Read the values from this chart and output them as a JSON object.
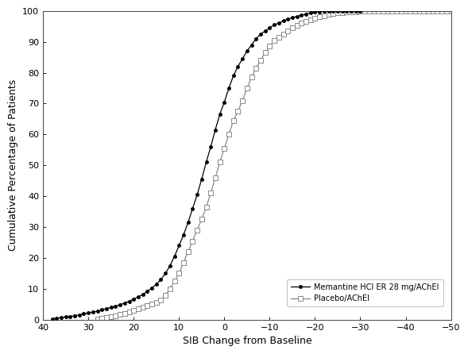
{
  "title": "",
  "xlabel": "SIB Change from Baseline",
  "ylabel": "Cumulative Percentage of Patients",
  "xlim": [
    40,
    -50
  ],
  "ylim": [
    0,
    100
  ],
  "xticks": [
    40,
    30,
    20,
    10,
    0,
    -10,
    -20,
    -30,
    -40,
    -50
  ],
  "yticks": [
    0,
    10,
    20,
    30,
    40,
    50,
    60,
    70,
    80,
    90,
    100
  ],
  "memantine_x": [
    38,
    37,
    36,
    35,
    34,
    33,
    32,
    31,
    30,
    29,
    28,
    27,
    26,
    25,
    24,
    23,
    22,
    21,
    20,
    19,
    18,
    17,
    16,
    15,
    14,
    13,
    12,
    11,
    10,
    9,
    8,
    7,
    6,
    5,
    4,
    3,
    2,
    1,
    0,
    -1,
    -2,
    -3,
    -4,
    -5,
    -6,
    -7,
    -8,
    -9,
    -10,
    -11,
    -12,
    -13,
    -14,
    -15,
    -16,
    -17,
    -18,
    -19,
    -20,
    -21,
    -22,
    -23,
    -24,
    -25,
    -26,
    -27,
    -28,
    -29,
    -30
  ],
  "memantine_y": [
    0.3,
    0.5,
    0.7,
    0.9,
    1.1,
    1.3,
    1.6,
    1.9,
    2.2,
    2.5,
    2.8,
    3.2,
    3.6,
    4.0,
    4.4,
    4.9,
    5.4,
    6.0,
    6.7,
    7.4,
    8.2,
    9.2,
    10.3,
    11.5,
    13.0,
    15.0,
    17.5,
    20.5,
    24.0,
    27.5,
    31.5,
    36.0,
    40.5,
    45.5,
    51.0,
    56.0,
    61.5,
    66.5,
    70.5,
    75.0,
    79.0,
    82.0,
    84.5,
    87.0,
    89.0,
    91.0,
    92.5,
    93.5,
    94.5,
    95.5,
    96.0,
    96.8,
    97.3,
    97.8,
    98.2,
    98.6,
    99.0,
    99.3,
    99.6,
    99.8,
    99.9,
    100,
    100,
    100,
    100,
    100,
    100,
    100,
    100
  ],
  "placebo_x": [
    28,
    27,
    26,
    25,
    24,
    23,
    22,
    21,
    20,
    19,
    18,
    17,
    16,
    15,
    14,
    13,
    12,
    11,
    10,
    9,
    8,
    7,
    6,
    5,
    4,
    3,
    2,
    1,
    0,
    -1,
    -2,
    -3,
    -4,
    -5,
    -6,
    -7,
    -8,
    -9,
    -10,
    -11,
    -12,
    -13,
    -14,
    -15,
    -16,
    -17,
    -18,
    -19,
    -20,
    -21,
    -22,
    -23,
    -24,
    -25,
    -26,
    -27,
    -28,
    -29,
    -30,
    -31,
    -32,
    -33,
    -34,
    -35,
    -36,
    -37,
    -38,
    -39,
    -40,
    -41,
    -42,
    -43,
    -44,
    -45,
    -46,
    -47,
    -48,
    -49,
    -50
  ],
  "placebo_y": [
    0.3,
    0.5,
    0.8,
    1.0,
    1.3,
    1.7,
    2.0,
    2.5,
    3.0,
    3.5,
    4.0,
    4.5,
    5.0,
    5.7,
    6.5,
    8.0,
    10.0,
    12.5,
    15.0,
    18.5,
    22.0,
    25.5,
    29.0,
    32.5,
    36.5,
    41.0,
    46.0,
    51.0,
    55.5,
    60.0,
    64.5,
    67.5,
    71.0,
    75.0,
    78.5,
    81.5,
    84.0,
    86.5,
    88.5,
    90.5,
    91.5,
    92.5,
    93.5,
    94.5,
    95.3,
    96.0,
    96.7,
    97.2,
    97.7,
    98.1,
    98.5,
    98.8,
    99.1,
    99.3,
    99.5,
    99.6,
    99.7,
    99.8,
    99.85,
    99.9,
    99.93,
    99.95,
    99.97,
    99.98,
    99.99,
    100,
    100,
    100,
    100,
    100,
    100,
    100,
    100,
    100,
    100,
    100,
    100,
    100,
    100
  ],
  "mem_color": "#000000",
  "pla_color": "#888888",
  "mem_label": "Memantine HCI ER 28 mg/AChEI",
  "pla_label": "Placebo/AChEI",
  "background_color": "#ffffff",
  "font_size": 9
}
